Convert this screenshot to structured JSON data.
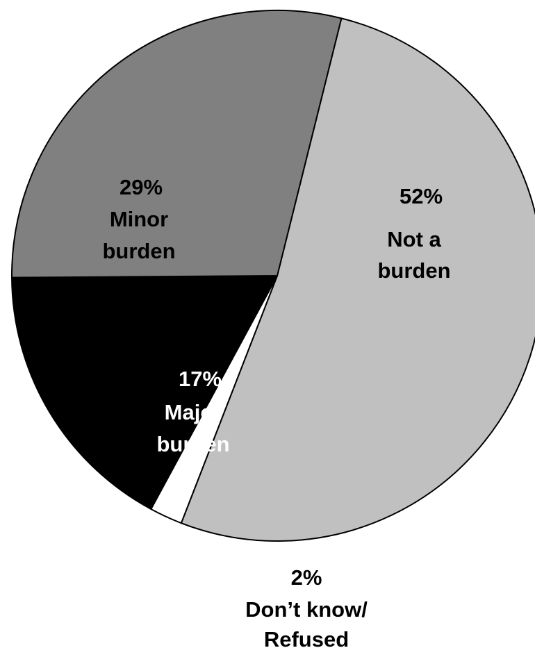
{
  "chart_data": {
    "type": "pie",
    "title": "",
    "slices": [
      {
        "percent_label": "52%",
        "label_lines": [
          "Not a",
          "burden"
        ],
        "value": 52,
        "color": "#c0c0c0"
      },
      {
        "percent_label": "2%",
        "label_lines": [
          "Don’t know/",
          "Refused"
        ],
        "value": 2,
        "color": "#ffffff"
      },
      {
        "percent_label": "17%",
        "label_lines": [
          "Major",
          "burden"
        ],
        "value": 17,
        "color": "#000000"
      },
      {
        "percent_label": "29%",
        "label_lines": [
          "Minor",
          "burden"
        ],
        "value": 29,
        "color": "#808080"
      }
    ],
    "start_angle_degrees_clockwise_from_top": 14,
    "stroke_color": "#000000"
  }
}
